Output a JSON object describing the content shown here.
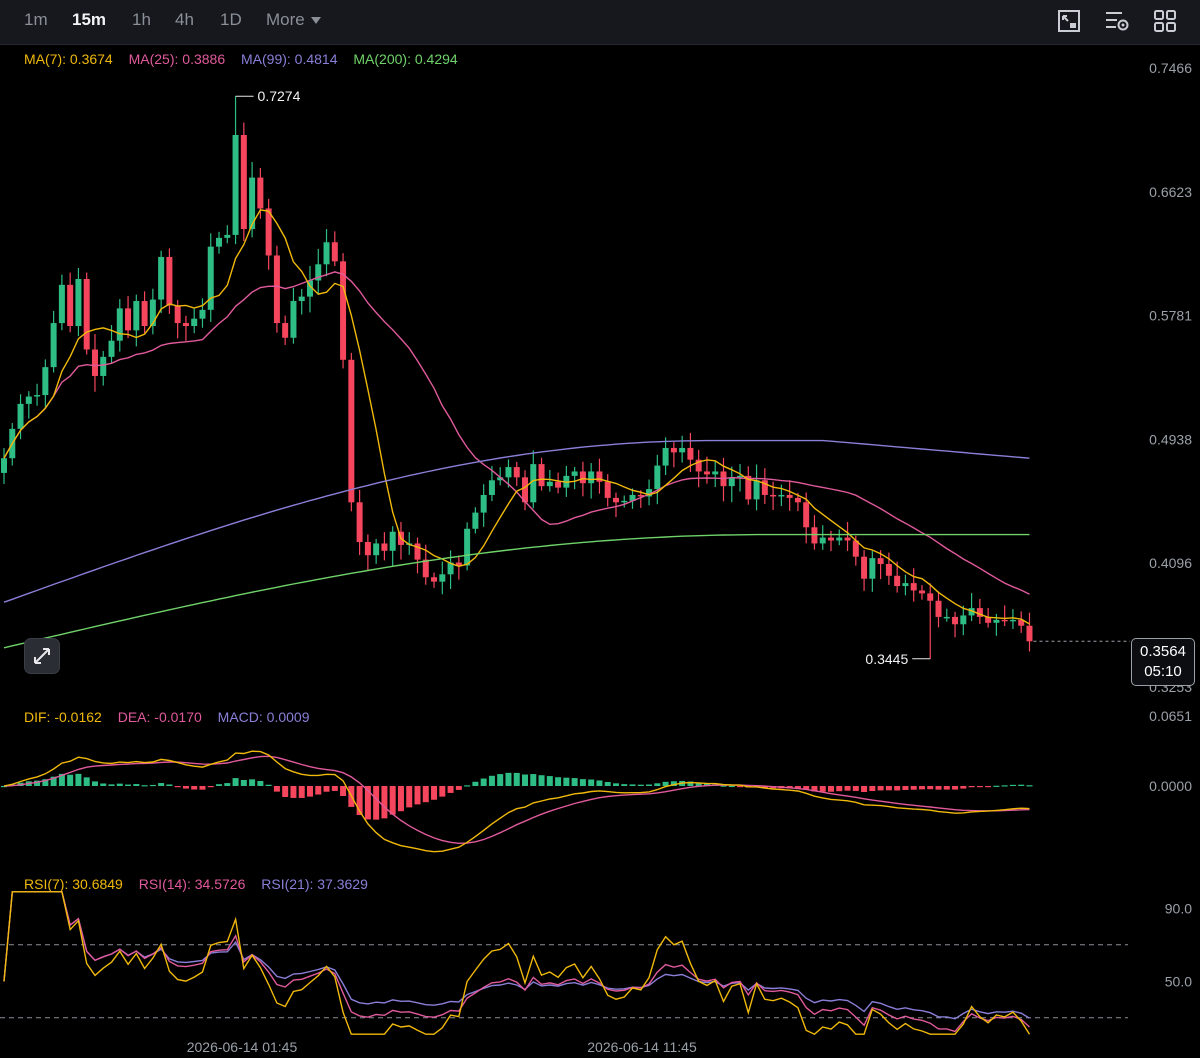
{
  "toolbar": {
    "timeframes": [
      "1m",
      "15m",
      "1h",
      "4h",
      "1D"
    ],
    "active": "15m",
    "more_label": "More",
    "icons": [
      "chart-settings-icon",
      "indicator-settings-icon",
      "layout-grid-icon"
    ]
  },
  "main_legend": {
    "ma7": "MA(7): 0.3674",
    "ma25": "MA(25): 0.3886",
    "ma99": "MA(99): 0.4814",
    "ma200": "MA(200): 0.4294"
  },
  "macd_legend": {
    "dif": "DIF: -0.0162",
    "dea": "DEA: -0.0170",
    "macd": "MACD: 0.0009"
  },
  "rsi_legend": {
    "rsi7": "RSI(7): 30.6849",
    "rsi14": "RSI(14): 34.5726",
    "rsi21": "RSI(21): 37.3629"
  },
  "price_axis": [
    "0.7466",
    "0.6623",
    "0.5781",
    "0.4938",
    "0.4096",
    "0.3253"
  ],
  "macd_axis": [
    "0.0651",
    "0.0000"
  ],
  "rsi_axis": [
    "90.0",
    "50.0"
  ],
  "time_axis": [
    "2026-06-14 01:45",
    "2026-06-14 11:45"
  ],
  "high_label": "0.7274",
  "low_label": "0.3445",
  "current_price": "0.3564",
  "countdown": "05:10",
  "colors": {
    "up": "#2ebd85",
    "down": "#f6465d",
    "ma7": "#f0b90b",
    "ma25": "#e05a9c",
    "ma99": "#8a7fd8",
    "ma200": "#6fd36a",
    "rsi7": "#f0b90b",
    "rsi14": "#e05a9c",
    "rsi21": "#8a7fd8"
  },
  "chart_data": {
    "type": "candlestick",
    "closes": [
      0.481,
      0.501,
      0.518,
      0.523,
      0.524,
      0.543,
      0.573,
      0.599,
      0.571,
      0.603,
      0.555,
      0.537,
      0.55,
      0.561,
      0.583,
      0.568,
      0.588,
      0.571,
      0.589,
      0.618,
      0.585,
      0.573,
      0.571,
      0.576,
      0.582,
      0.625,
      0.631,
      0.633,
      0.701,
      0.637,
      0.672,
      0.651,
      0.619,
      0.573,
      0.563,
      0.588,
      0.591,
      0.602,
      0.613,
      0.628,
      0.615,
      0.548,
      0.451,
      0.424,
      0.415,
      0.423,
      0.418,
      0.431,
      0.422,
      0.423,
      0.412,
      0.4,
      0.397,
      0.402,
      0.41,
      0.408,
      0.433,
      0.444,
      0.456,
      0.466,
      0.468,
      0.475,
      0.468,
      0.451,
      0.477,
      0.462,
      0.465,
      0.461,
      0.469,
      0.472,
      0.464,
      0.472,
      0.465,
      0.454,
      0.451,
      0.452,
      0.456,
      0.455,
      0.46,
      0.476,
      0.488,
      0.485,
      0.488,
      0.48,
      0.472,
      0.47,
      0.472,
      0.462,
      0.468,
      0.469,
      0.453,
      0.466,
      0.456,
      0.455,
      0.456,
      0.454,
      0.451,
      0.434,
      0.423,
      0.427,
      0.425,
      0.427,
      0.425,
      0.414,
      0.399,
      0.413,
      0.409,
      0.401,
      0.394,
      0.396,
      0.391,
      0.389,
      0.384,
      0.373,
      0.373,
      0.368,
      0.374,
      0.379,
      0.373,
      0.369,
      0.371,
      0.37,
      0.371,
      0.367,
      0.3564
    ],
    "price_range": [
      0.3253,
      0.7466
    ],
    "high": 0.7274,
    "low": 0.3445,
    "indicators": [
      "MA(7)",
      "MA(25)",
      "MA(99)",
      "MA(200)",
      "MACD",
      "RSI(7)",
      "RSI(14)",
      "RSI(21)"
    ],
    "macd_range": [
      -0.06,
      0.0651
    ],
    "rsi_range": [
      20,
      100
    ],
    "rsi_dashed_levels": [
      70,
      30
    ]
  }
}
